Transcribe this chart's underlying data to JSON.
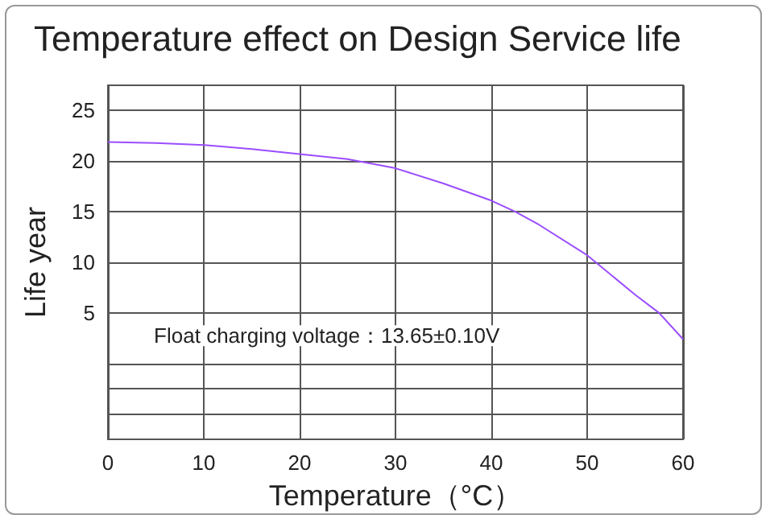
{
  "chart_data": {
    "type": "line",
    "title": "Temperature effect on Design Service life",
    "xlabel": "Temperature（°C）",
    "ylabel": "Life year",
    "annotations": [
      "Float charging voltage：13.65±0.10V"
    ],
    "x": [
      0,
      5,
      10,
      15,
      20,
      25,
      30,
      35,
      40,
      42.5,
      45,
      50,
      55,
      57.5,
      60
    ],
    "series": [
      {
        "color": "#9b4dff",
        "values": [
          21.9,
          21.8,
          21.6,
          21.2,
          20.7,
          20.2,
          19.3,
          17.8,
          16.1,
          15,
          13.7,
          10.7,
          6.8,
          5,
          2.4
        ]
      }
    ],
    "xlim": [
      0,
      60
    ],
    "xticks": [
      0,
      10,
      20,
      30,
      40,
      50,
      60
    ],
    "ylim": [
      -7.5,
      27.5
    ],
    "yticks": [
      {
        "value": -5,
        "label": null
      },
      {
        "value": -2.5,
        "label": null
      },
      {
        "value": 0,
        "label": null
      },
      5,
      10,
      15,
      20,
      25
    ],
    "grid": true,
    "marker": "none",
    "line_style": "solid"
  }
}
